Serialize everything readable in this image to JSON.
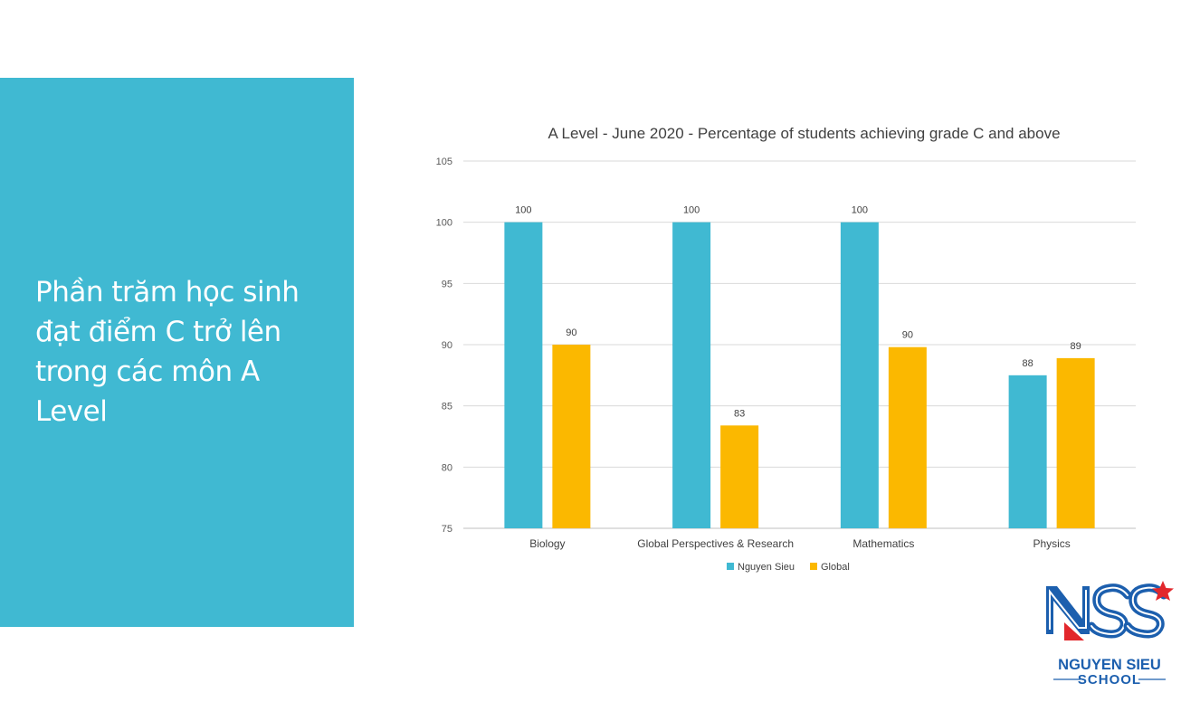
{
  "slide": {
    "title": "Phần trăm học sinh\nđạt điểm C trở lên\ntrong các môn A\nLevel",
    "panel_color": "#40b9d2"
  },
  "logo": {
    "mark_text": "NSS",
    "name_line1": "NGUYEN SIEU",
    "name_line2": "SCHOOL",
    "colors": {
      "blue": "#1c5fae",
      "red": "#e2272c"
    }
  },
  "chart_data": {
    "type": "bar",
    "title": "A  Level - June 2020 - Percentage of students achieving grade C and above",
    "categories": [
      "Biology",
      "Global Perspectives & Research",
      "Mathematics",
      "Physics"
    ],
    "series": [
      {
        "name": "Nguyen Sieu",
        "color": "#40b9d2",
        "values": [
          100,
          100,
          100,
          87.5
        ],
        "labels": [
          "100",
          "100",
          "100",
          "88"
        ]
      },
      {
        "name": "Global",
        "color": "#fbb800",
        "values": [
          90,
          83.4,
          89.8,
          88.9
        ],
        "labels": [
          "90",
          "83",
          "90",
          "89"
        ]
      }
    ],
    "ylim": [
      75,
      105
    ],
    "yticks": [
      75,
      80,
      85,
      90,
      95,
      100,
      105
    ],
    "grid": true,
    "legend": "bottom"
  }
}
